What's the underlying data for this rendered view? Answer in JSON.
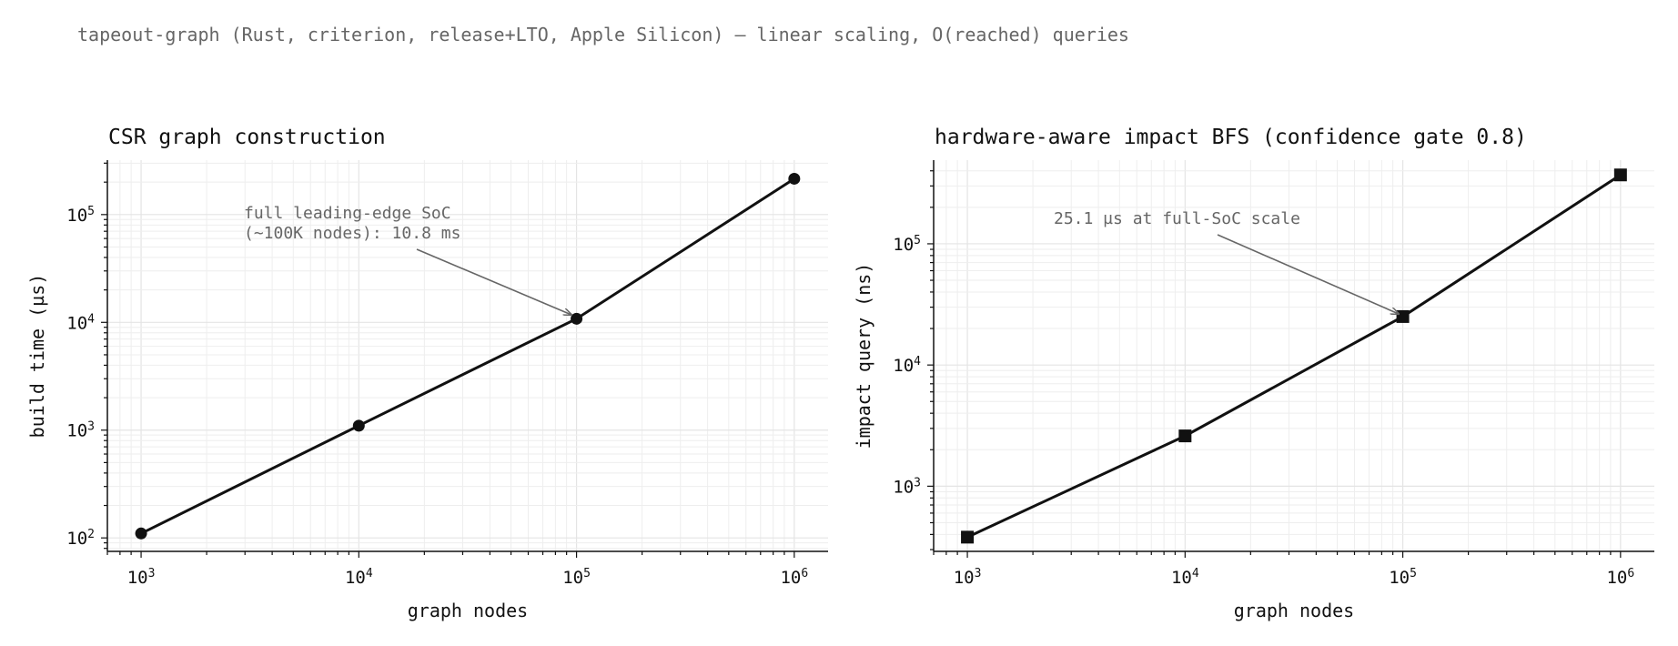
{
  "suptitle": "tapeout-graph (Rust, criterion, release+LTO, Apple Silicon) — linear scaling, O(reached) queries",
  "chart_data": [
    {
      "type": "line",
      "title": "CSR graph construction",
      "xlabel": "graph nodes",
      "ylabel": "build time (µs)",
      "xscale": "log",
      "yscale": "log",
      "xlim": [
        700,
        1430000
      ],
      "ylim": [
        75,
        320000
      ],
      "grid": true,
      "marker": "circle",
      "color": "#111111",
      "x": [
        1000,
        10000,
        100000,
        1000000
      ],
      "y": [
        110,
        1100,
        10800,
        215000
      ],
      "xticks": [
        1000,
        10000,
        100000,
        1000000
      ],
      "yticks": [
        100,
        1000,
        10000,
        100000
      ],
      "annotation": {
        "text": [
          "full leading-edge SoC",
          "(~100K nodes): 10.8 ms"
        ],
        "target": [
          100000,
          10800
        ]
      }
    },
    {
      "type": "line",
      "title": "hardware-aware impact BFS (confidence gate 0.8)",
      "xlabel": "graph nodes",
      "ylabel": "impact query (ns)",
      "xscale": "log",
      "yscale": "log",
      "xlim": [
        700,
        1430000
      ],
      "ylim": [
        290,
        490000
      ],
      "grid": true,
      "marker": "square",
      "color": "#111111",
      "x": [
        1000,
        10000,
        100000,
        1000000
      ],
      "y": [
        380,
        2600,
        25100,
        370000
      ],
      "xticks": [
        1000,
        10000,
        100000,
        1000000
      ],
      "yticks": [
        1000,
        10000,
        100000
      ],
      "annotation": {
        "text": [
          "25.1 µs at full-SoC scale"
        ],
        "target": [
          100000,
          25100
        ]
      }
    }
  ]
}
